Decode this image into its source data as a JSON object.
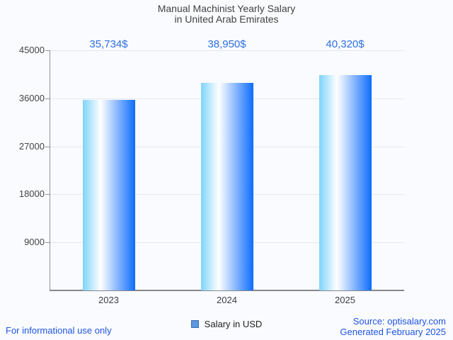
{
  "title": {
    "line1": "Manual Machinist Yearly Salary",
    "line2": "in United Arab Emirates"
  },
  "chart_data": {
    "type": "bar",
    "categories": [
      "2023",
      "2024",
      "2025"
    ],
    "values": [
      35734,
      38950,
      40320
    ],
    "value_labels": [
      "35,734$",
      "38,950$",
      "40,320$"
    ],
    "series_name": "Salary in USD",
    "title": "Manual Machinist Yearly Salary in United Arab Emirates",
    "xlabel": "",
    "ylabel": "",
    "ylim": [
      0,
      45000
    ],
    "yticks": [
      45000,
      36000,
      27000,
      18000,
      9000
    ],
    "grid": true,
    "legend_position": "bottom",
    "bar_orientation": "vertical"
  },
  "colors": {
    "value_label": "#2b6fe2",
    "bar_gradient_left": "#7fd3fc",
    "bar_gradient_mid": "#ffffff",
    "bar_gradient_right": "#0d6dfc",
    "legend_swatch": "#5c97e0",
    "legend_swatch_border": "#3b6fae",
    "footer_blue": "#1d55e0",
    "axis_gray": "#8f9499",
    "gridline_gray": "#e4e7ea"
  },
  "legend": {
    "label": "Salary in USD"
  },
  "footer": {
    "left": "For informational use only",
    "source": "Source: optisalary.com",
    "generated": "Generated February 2025"
  }
}
